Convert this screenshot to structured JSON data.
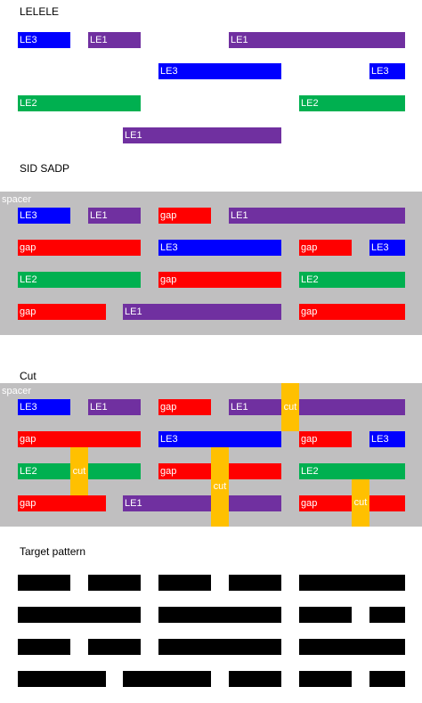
{
  "sections": {
    "lelele": {
      "title": "LELELE"
    },
    "sid_sadp": {
      "title": "SID SADP",
      "spacer_label": "spacer"
    },
    "cut": {
      "title": "Cut",
      "spacer_label": "spacer",
      "cut_label": "cut"
    },
    "target": {
      "title": "Target pattern"
    }
  },
  "colors": {
    "LE1": "#7030a0",
    "LE2": "#00b050",
    "LE3": "#0000ff",
    "gap": "#ff0000",
    "cut": "#ffc000",
    "spacer": "#c0bfc0",
    "target": "#000000"
  },
  "labels": {
    "LE1": "LE1",
    "LE2": "LE2",
    "LE3": "LE3",
    "gap": "gap"
  }
}
